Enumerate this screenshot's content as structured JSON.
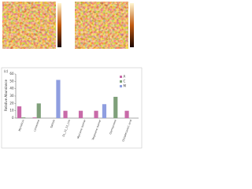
{
  "chart_data": {
    "type": "bar",
    "panel_label": "(c)",
    "ylabel": "Relative Abundance",
    "categories": [
      "Myristicin",
      "Limonene",
      "Safrole",
      "DL_11_12_Lim",
      "Myrcene isomer",
      "Terpinene isomer",
      "Germacrene",
      "Octadecanoic acid"
    ],
    "series": [
      {
        "name": "A",
        "color": "#c86aa8",
        "values": [
          16,
          1,
          null,
          10,
          10,
          10,
          null,
          10
        ]
      },
      {
        "name": "C",
        "color": "#7fa07a",
        "values": [
          1,
          20,
          null,
          null,
          null,
          null,
          29,
          null
        ]
      },
      {
        "name": "M",
        "color": "#8f9ee0",
        "values": [
          null,
          null,
          52,
          null,
          null,
          19,
          null,
          null
        ]
      }
    ],
    "ylim": [
      0,
      60
    ],
    "yticks": [
      0,
      10,
      20,
      30,
      40,
      50,
      60
    ],
    "legend": "upper-right"
  }
}
